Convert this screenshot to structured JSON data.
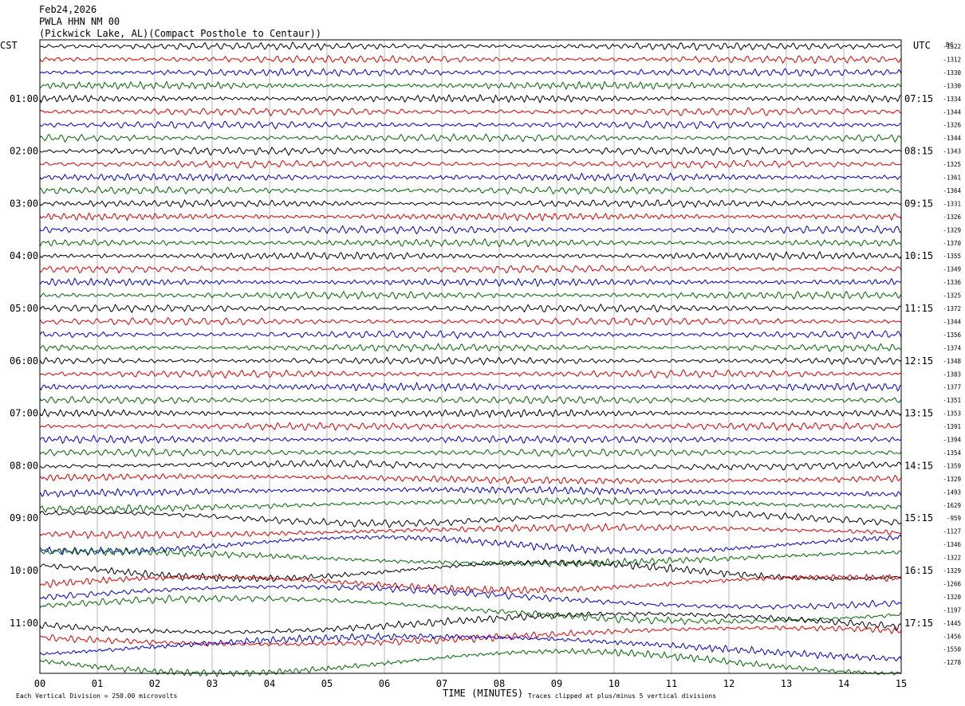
{
  "header": {
    "date": "Feb24,2026",
    "station": "PWLA HHN NM 00",
    "location": "(Pickwick Lake, AL)(Compact Posthole to Centaur))"
  },
  "left_tz": "CST",
  "right_tz": "UTC",
  "dc_label": "DC",
  "footer": {
    "scale": "Each Vertical Division =  250.00 microvolts",
    "clip": "Traces clipped at plus/minus 5 vertical divisions"
  },
  "chart_data": {
    "type": "line",
    "xlabel": "TIME (MINUTES)",
    "xlim": [
      0,
      15
    ],
    "x_ticks": [
      "00",
      "01",
      "02",
      "03",
      "04",
      "05",
      "06",
      "07",
      "08",
      "09",
      "10",
      "11",
      "12",
      "13",
      "14",
      "15"
    ],
    "trace_colors": [
      "#000000",
      "#dd0000",
      "#0000cc",
      "#006600"
    ],
    "left_hour_labels": [
      "01:00",
      "02:00",
      "03:00",
      "04:00",
      "05:00",
      "06:00",
      "07:00",
      "08:00",
      "09:00",
      "10:00",
      "11:00"
    ],
    "right_hour_labels": [
      "07:15",
      "08:15",
      "09:15",
      "10:15",
      "11:15",
      "12:15",
      "13:15",
      "14:15",
      "15:15",
      "16:15",
      "17:15"
    ],
    "dc_offsets": [
      "-1322",
      "-1312",
      "-1330",
      "-1330",
      "-1334",
      "-1344",
      "-1326",
      "-1344",
      "-1343",
      "-1325",
      "-1361",
      "-1364",
      "-1331",
      "-1326",
      "-1329",
      "-1370",
      "-1355",
      "-1349",
      "-1336",
      "-1325",
      "-1372",
      "-1344",
      "-1356",
      "-1374",
      "-1348",
      "-1383",
      "-1377",
      "-1351",
      "-1353",
      "-1391",
      "-1394",
      "-1354",
      "-1359",
      "-1329",
      "-1493",
      "-1629",
      "-959",
      "-1127",
      "-1346",
      "-1322",
      "-1329",
      "-1266",
      "-1320",
      "-1197",
      "-1445",
      "-1456",
      "-1550",
      "-1278"
    ]
  }
}
